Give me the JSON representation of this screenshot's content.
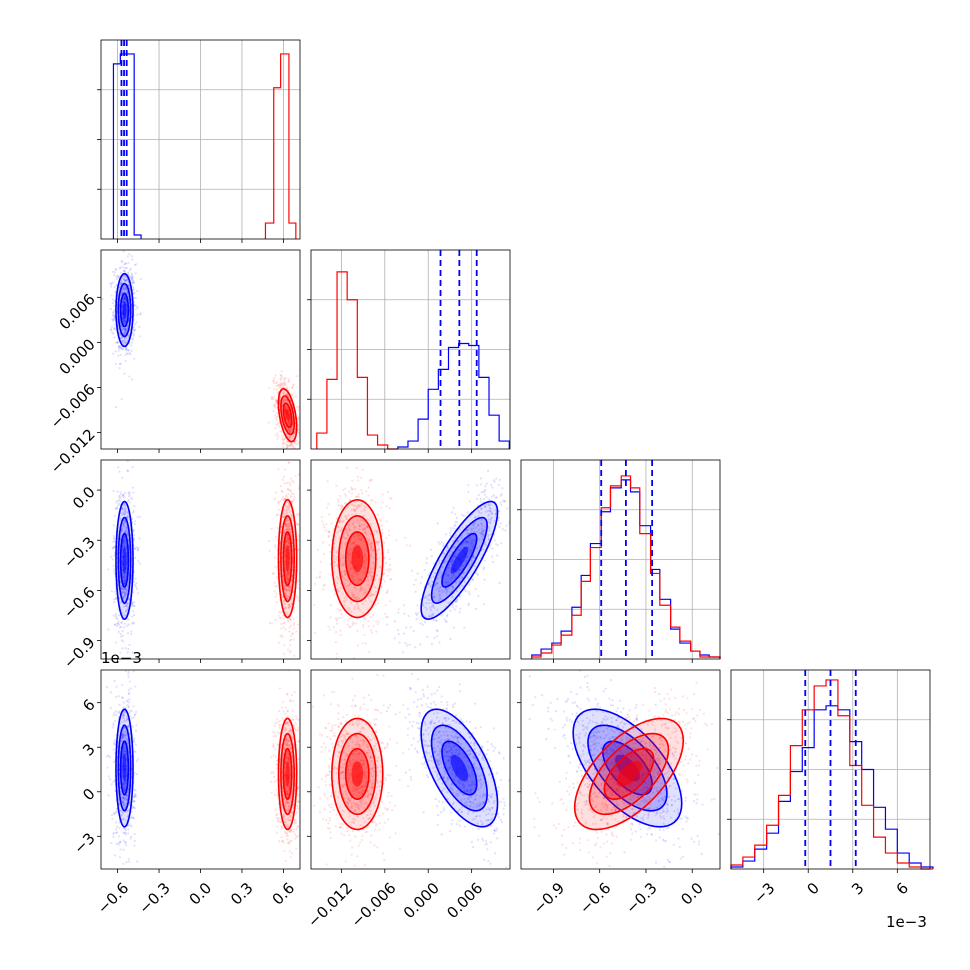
{
  "figure": {
    "offset_text_x": "1e−3",
    "offset_text_y": "1e−3"
  },
  "colors": {
    "series_a": "#0000ff",
    "series_b": "#ff0000",
    "grid": "#b0b0b0",
    "frame": "#000000"
  },
  "chart_data": [
    {
      "type": "histogram",
      "panel": "row1-col1",
      "xlim": [
        -0.72,
        0.72
      ],
      "grid": true,
      "series": [
        {
          "color": "#0000ff",
          "bins": [
            -0.63,
            -0.58,
            -0.53,
            -0.48,
            -0.43
          ],
          "counts": [
            0.88,
            0.93,
            0.93,
            0.02
          ],
          "quantiles": [
            -0.572,
            -0.553,
            -0.534
          ]
        },
        {
          "color": "#ff0000",
          "bins": [
            0.47,
            0.53,
            0.58,
            0.64,
            0.69
          ],
          "counts": [
            0.08,
            0.76,
            0.93,
            0.08
          ]
        }
      ]
    },
    {
      "type": "histogram",
      "panel": "row2-col2",
      "xlim": [
        -0.0162,
        0.0113
      ],
      "grid": true,
      "series": [
        {
          "color": "#ff0000",
          "bins": [
            -0.0154,
            -0.014,
            -0.0126,
            -0.0112,
            -0.0098,
            -0.0084,
            -0.007,
            -0.0056,
            -0.0042
          ],
          "counts": [
            0.08,
            0.35,
            0.89,
            0.75,
            0.36,
            0.07,
            0.02,
            0.0
          ]
        },
        {
          "color": "#0000ff",
          "bins": [
            -0.0042,
            -0.0028,
            -0.0014,
            0.0,
            0.0014,
            0.0028,
            0.0042,
            0.0056,
            0.007,
            0.0084,
            0.0098,
            0.0112
          ],
          "counts": [
            0.01,
            0.04,
            0.15,
            0.3,
            0.4,
            0.51,
            0.53,
            0.52,
            0.36,
            0.17,
            0.04
          ]
        }
      ],
      "quantiles": [
        0.0017,
        0.0043,
        0.0067
      ]
    },
    {
      "type": "histogram",
      "panel": "row3-col3",
      "xlim": [
        -1.11,
        0.18
      ],
      "grid": true,
      "series": [
        {
          "color": "#0000ff",
          "bins": [
            -1.04,
            -0.98,
            -0.91,
            -0.85,
            -0.78,
            -0.72,
            -0.66,
            -0.59,
            -0.53,
            -0.46,
            -0.4,
            -0.34,
            -0.27,
            -0.21,
            -0.14,
            -0.08,
            -0.01,
            0.05,
            0.11,
            0.18
          ],
          "counts": [
            0.02,
            0.05,
            0.08,
            0.14,
            0.26,
            0.42,
            0.58,
            0.74,
            0.86,
            0.9,
            0.84,
            0.67,
            0.45,
            0.3,
            0.15,
            0.08,
            0.04,
            0.02,
            0.01
          ]
        },
        {
          "color": "#ff0000",
          "bins": [
            -1.04,
            -0.98,
            -0.91,
            -0.85,
            -0.78,
            -0.72,
            -0.66,
            -0.59,
            -0.53,
            -0.46,
            -0.4,
            -0.34,
            -0.27,
            -0.21,
            -0.14,
            -0.08,
            -0.01,
            0.05,
            0.11,
            0.18
          ],
          "counts": [
            0.01,
            0.03,
            0.07,
            0.12,
            0.22,
            0.39,
            0.56,
            0.76,
            0.87,
            0.92,
            0.86,
            0.63,
            0.43,
            0.27,
            0.16,
            0.09,
            0.04,
            0.01,
            0.01
          ]
        }
      ],
      "quantiles": [
        -0.59,
        -0.43,
        -0.26
      ]
    },
    {
      "type": "histogram",
      "panel": "row4-col4",
      "xlim": [
        -0.0052,
        0.0082
      ],
      "xticks": [
        -3,
        0,
        3,
        6
      ],
      "grid": true,
      "series": [
        {
          "color": "#0000ff",
          "bins": [
            -0.0052,
            -0.0044,
            -0.0036,
            -0.0028,
            -0.002,
            -0.0012,
            -0.0004,
            0.0004,
            0.0012,
            0.002,
            0.0028,
            0.0036,
            0.0044,
            0.0052,
            0.006,
            0.0068,
            0.0076,
            0.0084
          ],
          "counts": [
            0.01,
            0.04,
            0.1,
            0.18,
            0.34,
            0.49,
            0.61,
            0.8,
            0.82,
            0.8,
            0.64,
            0.5,
            0.31,
            0.2,
            0.08,
            0.03,
            0.01
          ]
        },
        {
          "color": "#ff0000",
          "bins": [
            -0.0052,
            -0.0044,
            -0.0036,
            -0.0028,
            -0.002,
            -0.0012,
            -0.0004,
            0.0004,
            0.0012,
            0.002,
            0.0028,
            0.0036,
            0.0044,
            0.0052,
            0.006,
            0.0068,
            0.0076,
            0.0084
          ],
          "counts": [
            0.02,
            0.06,
            0.12,
            0.22,
            0.37,
            0.62,
            0.8,
            0.92,
            0.95,
            0.77,
            0.52,
            0.32,
            0.16,
            0.08,
            0.03,
            0.01,
            0.0
          ]
        }
      ],
      "quantiles": [
        -0.0002,
        0.0015,
        0.0032
      ]
    },
    {
      "type": "scatter-contour",
      "panel": "row2-col1",
      "x": "p1",
      "y": "p2",
      "xlim": [
        -0.72,
        0.72
      ],
      "ylim": [
        -0.0142,
        0.0123
      ],
      "clusters": [
        {
          "color": "#0000ff",
          "center": [
            -0.55,
            0.0043
          ],
          "sigma": [
            0.028,
            0.0022
          ],
          "rho": 0.0
        },
        {
          "color": "#ff0000",
          "center": [
            0.63,
            -0.0097
          ],
          "sigma": [
            0.03,
            0.0016
          ],
          "rho": -0.45
        }
      ]
    },
    {
      "type": "scatter-contour",
      "panel": "row3-col1",
      "x": "p1",
      "y": "p3",
      "xlim": [
        -0.72,
        0.72
      ],
      "ylim": [
        -1.01,
        0.18
      ],
      "clusters": [
        {
          "color": "#0000ff",
          "center": [
            -0.55,
            -0.42
          ],
          "sigma": [
            0.028,
            0.16
          ],
          "rho": 0.0
        },
        {
          "color": "#ff0000",
          "center": [
            0.63,
            -0.41
          ],
          "sigma": [
            0.03,
            0.16
          ],
          "rho": 0.0
        }
      ]
    },
    {
      "type": "scatter-contour",
      "panel": "row3-col2",
      "x": "p2",
      "y": "p3",
      "xlim": [
        -0.0162,
        0.0113
      ],
      "ylim": [
        -1.01,
        0.18
      ],
      "clusters": [
        {
          "color": "#0000ff",
          "center": [
            0.0043,
            -0.42
          ],
          "sigma": [
            0.0024,
            0.16
          ],
          "rho": 0.82
        },
        {
          "color": "#ff0000",
          "center": [
            -0.0098,
            -0.41
          ],
          "sigma": [
            0.0016,
            0.16
          ],
          "rho": 0.0
        }
      ]
    },
    {
      "type": "scatter-contour",
      "panel": "row4-col1",
      "x": "p1",
      "y": "p4",
      "xlim": [
        -0.72,
        0.72
      ],
      "ylim": [
        -0.0052,
        0.0082
      ],
      "clusters": [
        {
          "color": "#0000ff",
          "center": [
            -0.55,
            0.0016
          ],
          "sigma": [
            0.028,
            0.0018
          ],
          "rho": 0.0
        },
        {
          "color": "#ff0000",
          "center": [
            0.63,
            0.0012
          ],
          "sigma": [
            0.03,
            0.0017
          ],
          "rho": 0.0
        }
      ]
    },
    {
      "type": "scatter-contour",
      "panel": "row4-col2",
      "x": "p2",
      "y": "p4",
      "xlim": [
        -0.0162,
        0.0113
      ],
      "ylim": [
        -0.0052,
        0.0082
      ],
      "clusters": [
        {
          "color": "#0000ff",
          "center": [
            0.0043,
            0.0016
          ],
          "sigma": [
            0.0024,
            0.0018
          ],
          "rho": -0.6
        },
        {
          "color": "#ff0000",
          "center": [
            -0.0098,
            0.0012
          ],
          "sigma": [
            0.0016,
            0.0017
          ],
          "rho": 0.0
        }
      ]
    },
    {
      "type": "scatter-contour",
      "panel": "row4-col3",
      "x": "p3",
      "y": "p4",
      "xlim": [
        -1.11,
        0.18
      ],
      "ylim": [
        -0.0052,
        0.0082
      ],
      "clusters": [
        {
          "color": "#0000ff",
          "center": [
            -0.42,
            0.0016
          ],
          "sigma": [
            0.16,
            0.0018
          ],
          "rho": -0.6
        },
        {
          "color": "#ff0000",
          "center": [
            -0.41,
            0.0012
          ],
          "sigma": [
            0.16,
            0.0017
          ],
          "rho": 0.6
        }
      ]
    }
  ],
  "axes": {
    "p1": {
      "ticks": [
        -0.6,
        -0.3,
        0.0,
        0.3,
        0.6
      ],
      "labels": [
        "−0.6",
        "−0.3",
        "0.0",
        "0.3",
        "0.6"
      ]
    },
    "p2": {
      "ticks": [
        -0.012,
        -0.006,
        0.0,
        0.006
      ],
      "labels": [
        "−0.012",
        "−0.006",
        "0.000",
        "0.006"
      ]
    },
    "p3": {
      "ticks": [
        -0.9,
        -0.6,
        -0.3,
        0.0
      ],
      "labels": [
        "−0.9",
        "−0.6",
        "−0.3",
        "0.0"
      ]
    },
    "p4": {
      "ticks": [
        -0.003,
        0.0,
        0.003,
        0.006
      ],
      "labels": [
        "−3",
        "0",
        "3",
        "6"
      ]
    }
  }
}
